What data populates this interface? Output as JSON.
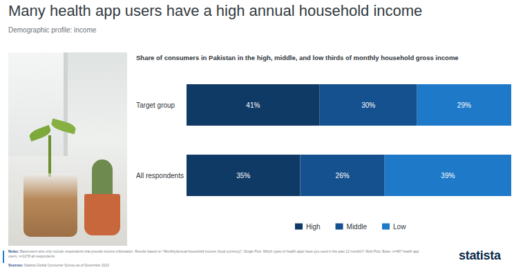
{
  "chart_data": {
    "type": "bar",
    "title": "Many health app users have a high annual household income",
    "subtitle": "Demographic profile: income",
    "chart_title": "Share of consumers in Pakistan in the high, middle, and low thirds of monthly household gross income",
    "categories": [
      "Target group",
      "All respondents"
    ],
    "series": [
      {
        "name": "High",
        "color": "#0f3a66",
        "values": [
          41,
          35
        ],
        "value_labels": [
          "41%",
          "35%"
        ]
      },
      {
        "name": "Middle",
        "color": "#16518f",
        "values": [
          30,
          26
        ],
        "value_labels": [
          "30%",
          "26%"
        ]
      },
      {
        "name": "Low",
        "color": "#1e79c8",
        "values": [
          29,
          39
        ],
        "value_labels": [
          "29%",
          "39%"
        ]
      }
    ],
    "xlim": [
      0,
      100
    ],
    "orientation": "horizontal",
    "stacked": true,
    "data_labels": true,
    "tick_labels": "y",
    "grid": false,
    "legend": "bottom",
    "notes_label": "Notes:",
    "notes": "Base/users who only include respondents that provide income information. Results based on \"Monthly/annual household income (local currency)\"; Single Pick: Which types of health apps have you used in the past 12 months?; Multi Pick; Base: n=467 health app users, n=1278 all respondents",
    "sources_label": "Sources:",
    "sources": "Statista Global Consumer Survey as of December 2022",
    "brand": "statista"
  }
}
